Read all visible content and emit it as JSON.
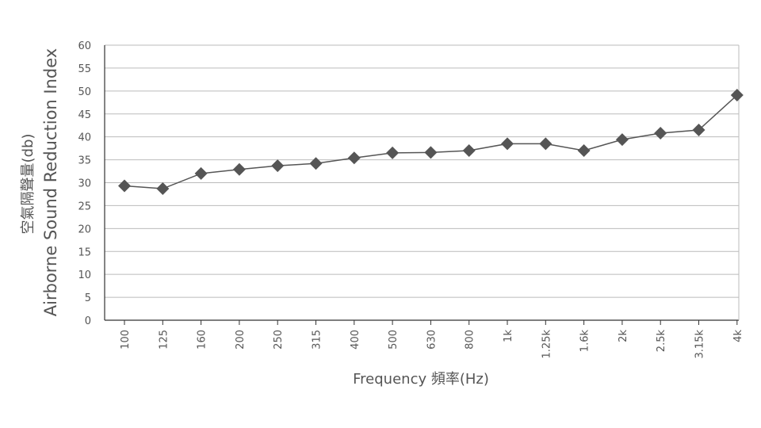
{
  "chart_data": {
    "type": "line",
    "xlabel": "Frequency 頻率(Hz)",
    "ylabel_line1": "空氣隔聲量(db)",
    "ylabel_line2": "Airborne Sound Reduction Index",
    "categories": [
      "100",
      "125",
      "160",
      "200",
      "250",
      "315",
      "400",
      "500",
      "630",
      "800",
      "1k",
      "1.25k",
      "1.6k",
      "2k",
      "2.5k",
      "3.15k",
      "4k"
    ],
    "series": [
      {
        "values": [
          29.3,
          28.7,
          32.0,
          32.9,
          33.7,
          34.2,
          35.4,
          36.5,
          36.6,
          37.0,
          38.5,
          38.5,
          37.0,
          39.4,
          40.8,
          41.5,
          49.1
        ]
      }
    ],
    "ylim": [
      0,
      60
    ],
    "yticks": [
      0,
      5,
      10,
      15,
      20,
      25,
      30,
      35,
      40,
      45,
      50,
      55,
      60
    ],
    "grid": true,
    "colors": {
      "series": "#555555",
      "grid": "#bbbbbb",
      "axis": "#333333"
    }
  }
}
